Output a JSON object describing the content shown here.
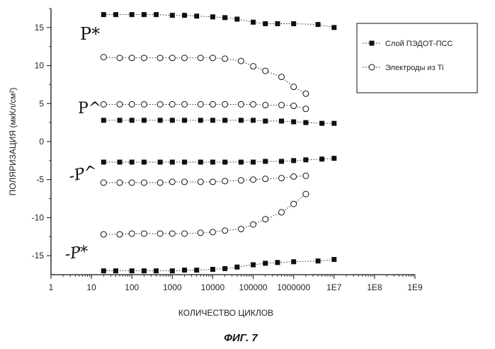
{
  "chart_data": {
    "type": "scatter",
    "title": "",
    "figure_caption": "ФИГ. 7",
    "xlabel": "КОЛИЧЕСТВО ЦИКЛОВ",
    "ylabel": "ПОЛЯРИЗАЦИЯ (мкКл/см²)",
    "x_scale": "log",
    "xlim": [
      1,
      1000000000
    ],
    "ylim": [
      -17.5,
      17.5
    ],
    "x_tick_values": [
      1,
      10,
      100,
      1000,
      10000,
      100000,
      1000000,
      10000000,
      100000000,
      1000000000
    ],
    "x_tick_labels": [
      "1",
      "10",
      "100",
      "1000",
      "10000",
      "100000",
      "1000000",
      "1E7",
      "1E8",
      "1E9"
    ],
    "y_tick_values": [
      15,
      10,
      5,
      0,
      -5,
      -10,
      -15
    ],
    "y_tick_labels": [
      "15",
      "10",
      "5",
      "0",
      "-5",
      "-10",
      "-15"
    ],
    "legend": {
      "position": "top-right",
      "entries": [
        "Слой ПЭДОТ-ПСС",
        "Электроды из Ti"
      ]
    },
    "annotations": {
      "p_star": "P*",
      "p_hat": "P^",
      "minus_p_hat": "-P^",
      "minus_p_star": "-P*"
    },
    "series": [
      {
        "name": "Слой ПЭДОТ-ПСС",
        "group": "+P*",
        "marker": "filled-square",
        "x": [
          20,
          40,
          100,
          200,
          400,
          1000,
          2000,
          4000,
          10000,
          20000,
          40000,
          100000,
          200000,
          400000,
          1000000,
          4000000,
          10000000
        ],
        "y": [
          16.7,
          16.7,
          16.7,
          16.7,
          16.7,
          16.6,
          16.6,
          16.5,
          16.4,
          16.3,
          16.1,
          15.7,
          15.5,
          15.5,
          15.5,
          15.4,
          15.0
        ]
      },
      {
        "name": "Электроды из Ti",
        "group": "+P*",
        "marker": "open-circle",
        "x": [
          20,
          50,
          100,
          200,
          500,
          1000,
          2000,
          5000,
          10000,
          20000,
          50000,
          100000,
          200000,
          500000,
          1000000,
          2000000
        ],
        "y": [
          11.1,
          11.0,
          11.0,
          11.0,
          11.0,
          11.0,
          11.0,
          11.0,
          11.0,
          10.9,
          10.6,
          9.9,
          9.3,
          8.5,
          7.2,
          6.3
        ]
      },
      {
        "name": "Электроды из Ti",
        "group": "+P^",
        "marker": "open-circle",
        "x": [
          20,
          50,
          100,
          200,
          500,
          1000,
          2000,
          5000,
          10000,
          20000,
          50000,
          100000,
          200000,
          500000,
          1000000,
          2000000
        ],
        "y": [
          4.9,
          4.9,
          4.9,
          4.9,
          4.9,
          4.9,
          4.9,
          4.9,
          4.9,
          4.9,
          4.9,
          4.9,
          4.8,
          4.8,
          4.7,
          4.3
        ]
      },
      {
        "name": "Слой ПЭДОТ-ПСС",
        "group": "+P^",
        "marker": "filled-square",
        "x": [
          20,
          50,
          100,
          200,
          500,
          1000,
          2000,
          5000,
          10000,
          20000,
          50000,
          100000,
          200000,
          500000,
          1000000,
          2000000,
          5000000,
          10000000
        ],
        "y": [
          2.8,
          2.8,
          2.8,
          2.8,
          2.8,
          2.8,
          2.8,
          2.8,
          2.8,
          2.8,
          2.8,
          2.8,
          2.7,
          2.7,
          2.6,
          2.5,
          2.4,
          2.4
        ]
      },
      {
        "name": "Слой ПЭДОТ-ПСС",
        "group": "-P^",
        "marker": "filled-square",
        "x": [
          20,
          50,
          100,
          200,
          500,
          1000,
          2000,
          5000,
          10000,
          20000,
          50000,
          100000,
          200000,
          500000,
          1000000,
          2000000,
          5000000,
          10000000
        ],
        "y": [
          -2.7,
          -2.7,
          -2.7,
          -2.7,
          -2.7,
          -2.7,
          -2.7,
          -2.7,
          -2.7,
          -2.7,
          -2.7,
          -2.7,
          -2.6,
          -2.6,
          -2.5,
          -2.4,
          -2.3,
          -2.2
        ]
      },
      {
        "name": "Электроды из Ti",
        "group": "-P^",
        "marker": "open-circle",
        "x": [
          20,
          50,
          100,
          200,
          500,
          1000,
          2000,
          5000,
          10000,
          20000,
          50000,
          100000,
          200000,
          500000,
          1000000,
          2000000
        ],
        "y": [
          -5.4,
          -5.4,
          -5.4,
          -5.4,
          -5.4,
          -5.3,
          -5.3,
          -5.3,
          -5.3,
          -5.2,
          -5.1,
          -5.0,
          -4.9,
          -4.8,
          -4.6,
          -4.5
        ]
      },
      {
        "name": "Электроды из Ti",
        "group": "-P*",
        "marker": "open-circle",
        "x": [
          20,
          50,
          100,
          200,
          500,
          1000,
          2000,
          5000,
          10000,
          20000,
          50000,
          100000,
          200000,
          500000,
          1000000,
          2000000
        ],
        "y": [
          -12.2,
          -12.2,
          -12.1,
          -12.1,
          -12.1,
          -12.1,
          -12.1,
          -12.0,
          -11.9,
          -11.7,
          -11.5,
          -10.9,
          -10.2,
          -9.3,
          -8.2,
          -6.9
        ]
      },
      {
        "name": "Слой ПЭДОТ-ПСС",
        "group": "-P*",
        "marker": "filled-square",
        "x": [
          20,
          40,
          100,
          200,
          400,
          1000,
          2000,
          4000,
          10000,
          20000,
          40000,
          100000,
          200000,
          400000,
          1000000,
          4000000,
          10000000
        ],
        "y": [
          -17.0,
          -17.0,
          -17.0,
          -17.0,
          -17.0,
          -17.0,
          -16.9,
          -16.9,
          -16.8,
          -16.7,
          -16.5,
          -16.2,
          -16.0,
          -15.9,
          -15.8,
          -15.7,
          -15.5
        ]
      }
    ]
  }
}
